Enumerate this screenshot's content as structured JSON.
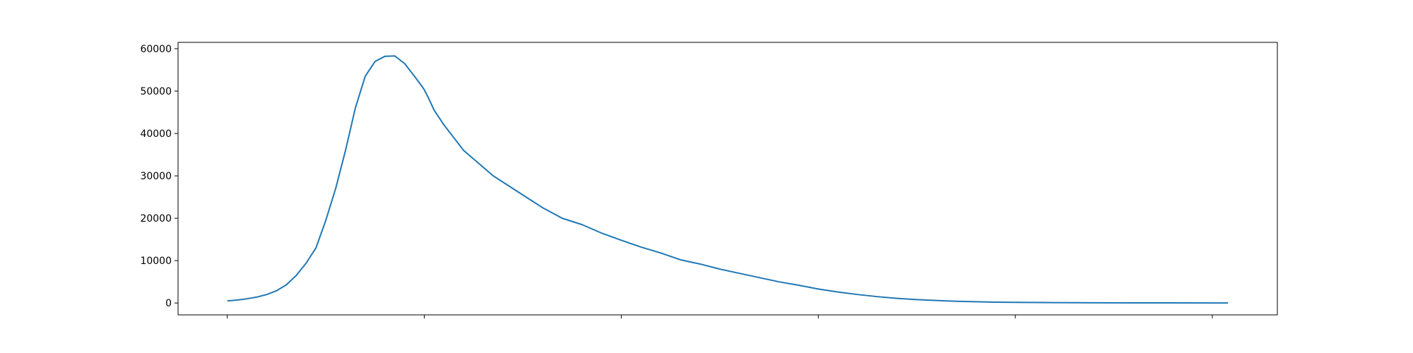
{
  "chart_data": {
    "type": "line",
    "title": "",
    "xlabel": "",
    "ylabel": "",
    "x_range": [
      0,
      508
    ],
    "xlim": [
      -25,
      533
    ],
    "ylim": [
      -2800,
      61500
    ],
    "x_ticks": [
      0,
      100,
      200,
      300,
      400,
      500
    ],
    "x_tick_labels": [
      "",
      "",
      "",
      "",
      "",
      ""
    ],
    "y_ticks": [
      0,
      10000,
      20000,
      30000,
      40000,
      50000,
      60000
    ],
    "y_tick_labels": [
      "0",
      "10000",
      "20000",
      "30000",
      "40000",
      "50000",
      "60000"
    ],
    "grid": false,
    "legend": "none",
    "line_color": "#1f77b4",
    "series": [
      {
        "x": [
          0,
          5,
          10,
          15,
          20,
          25,
          30,
          35,
          40,
          45,
          50,
          55,
          60,
          65,
          70,
          75,
          80,
          85,
          90,
          95,
          99,
          100,
          102,
          105,
          110,
          115,
          120,
          125,
          130,
          135,
          140,
          145,
          150,
          155,
          160,
          170,
          180,
          190,
          200,
          210,
          220,
          230,
          240,
          250,
          260,
          270,
          280,
          290,
          300,
          310,
          320,
          330,
          340,
          350,
          360,
          370,
          380,
          390,
          400,
          420,
          440,
          460,
          480,
          500,
          508
        ],
        "values": [
          500,
          700,
          1000,
          1400,
          2000,
          2900,
          4300,
          6500,
          9400,
          13000,
          19500,
          27000,
          36000,
          46000,
          53500,
          57000,
          58200,
          58300,
          56500,
          53500,
          51000,
          50300,
          48500,
          45500,
          42000,
          39000,
          36000,
          34000,
          32000,
          30000,
          28500,
          27000,
          25500,
          24000,
          22500,
          20000,
          18500,
          16500,
          14800,
          13200,
          11800,
          10200,
          9200,
          8000,
          7000,
          6000,
          5000,
          4200,
          3300,
          2600,
          2000,
          1500,
          1100,
          800,
          600,
          400,
          300,
          200,
          150,
          100,
          60,
          40,
          30,
          20,
          20
        ]
      }
    ]
  }
}
